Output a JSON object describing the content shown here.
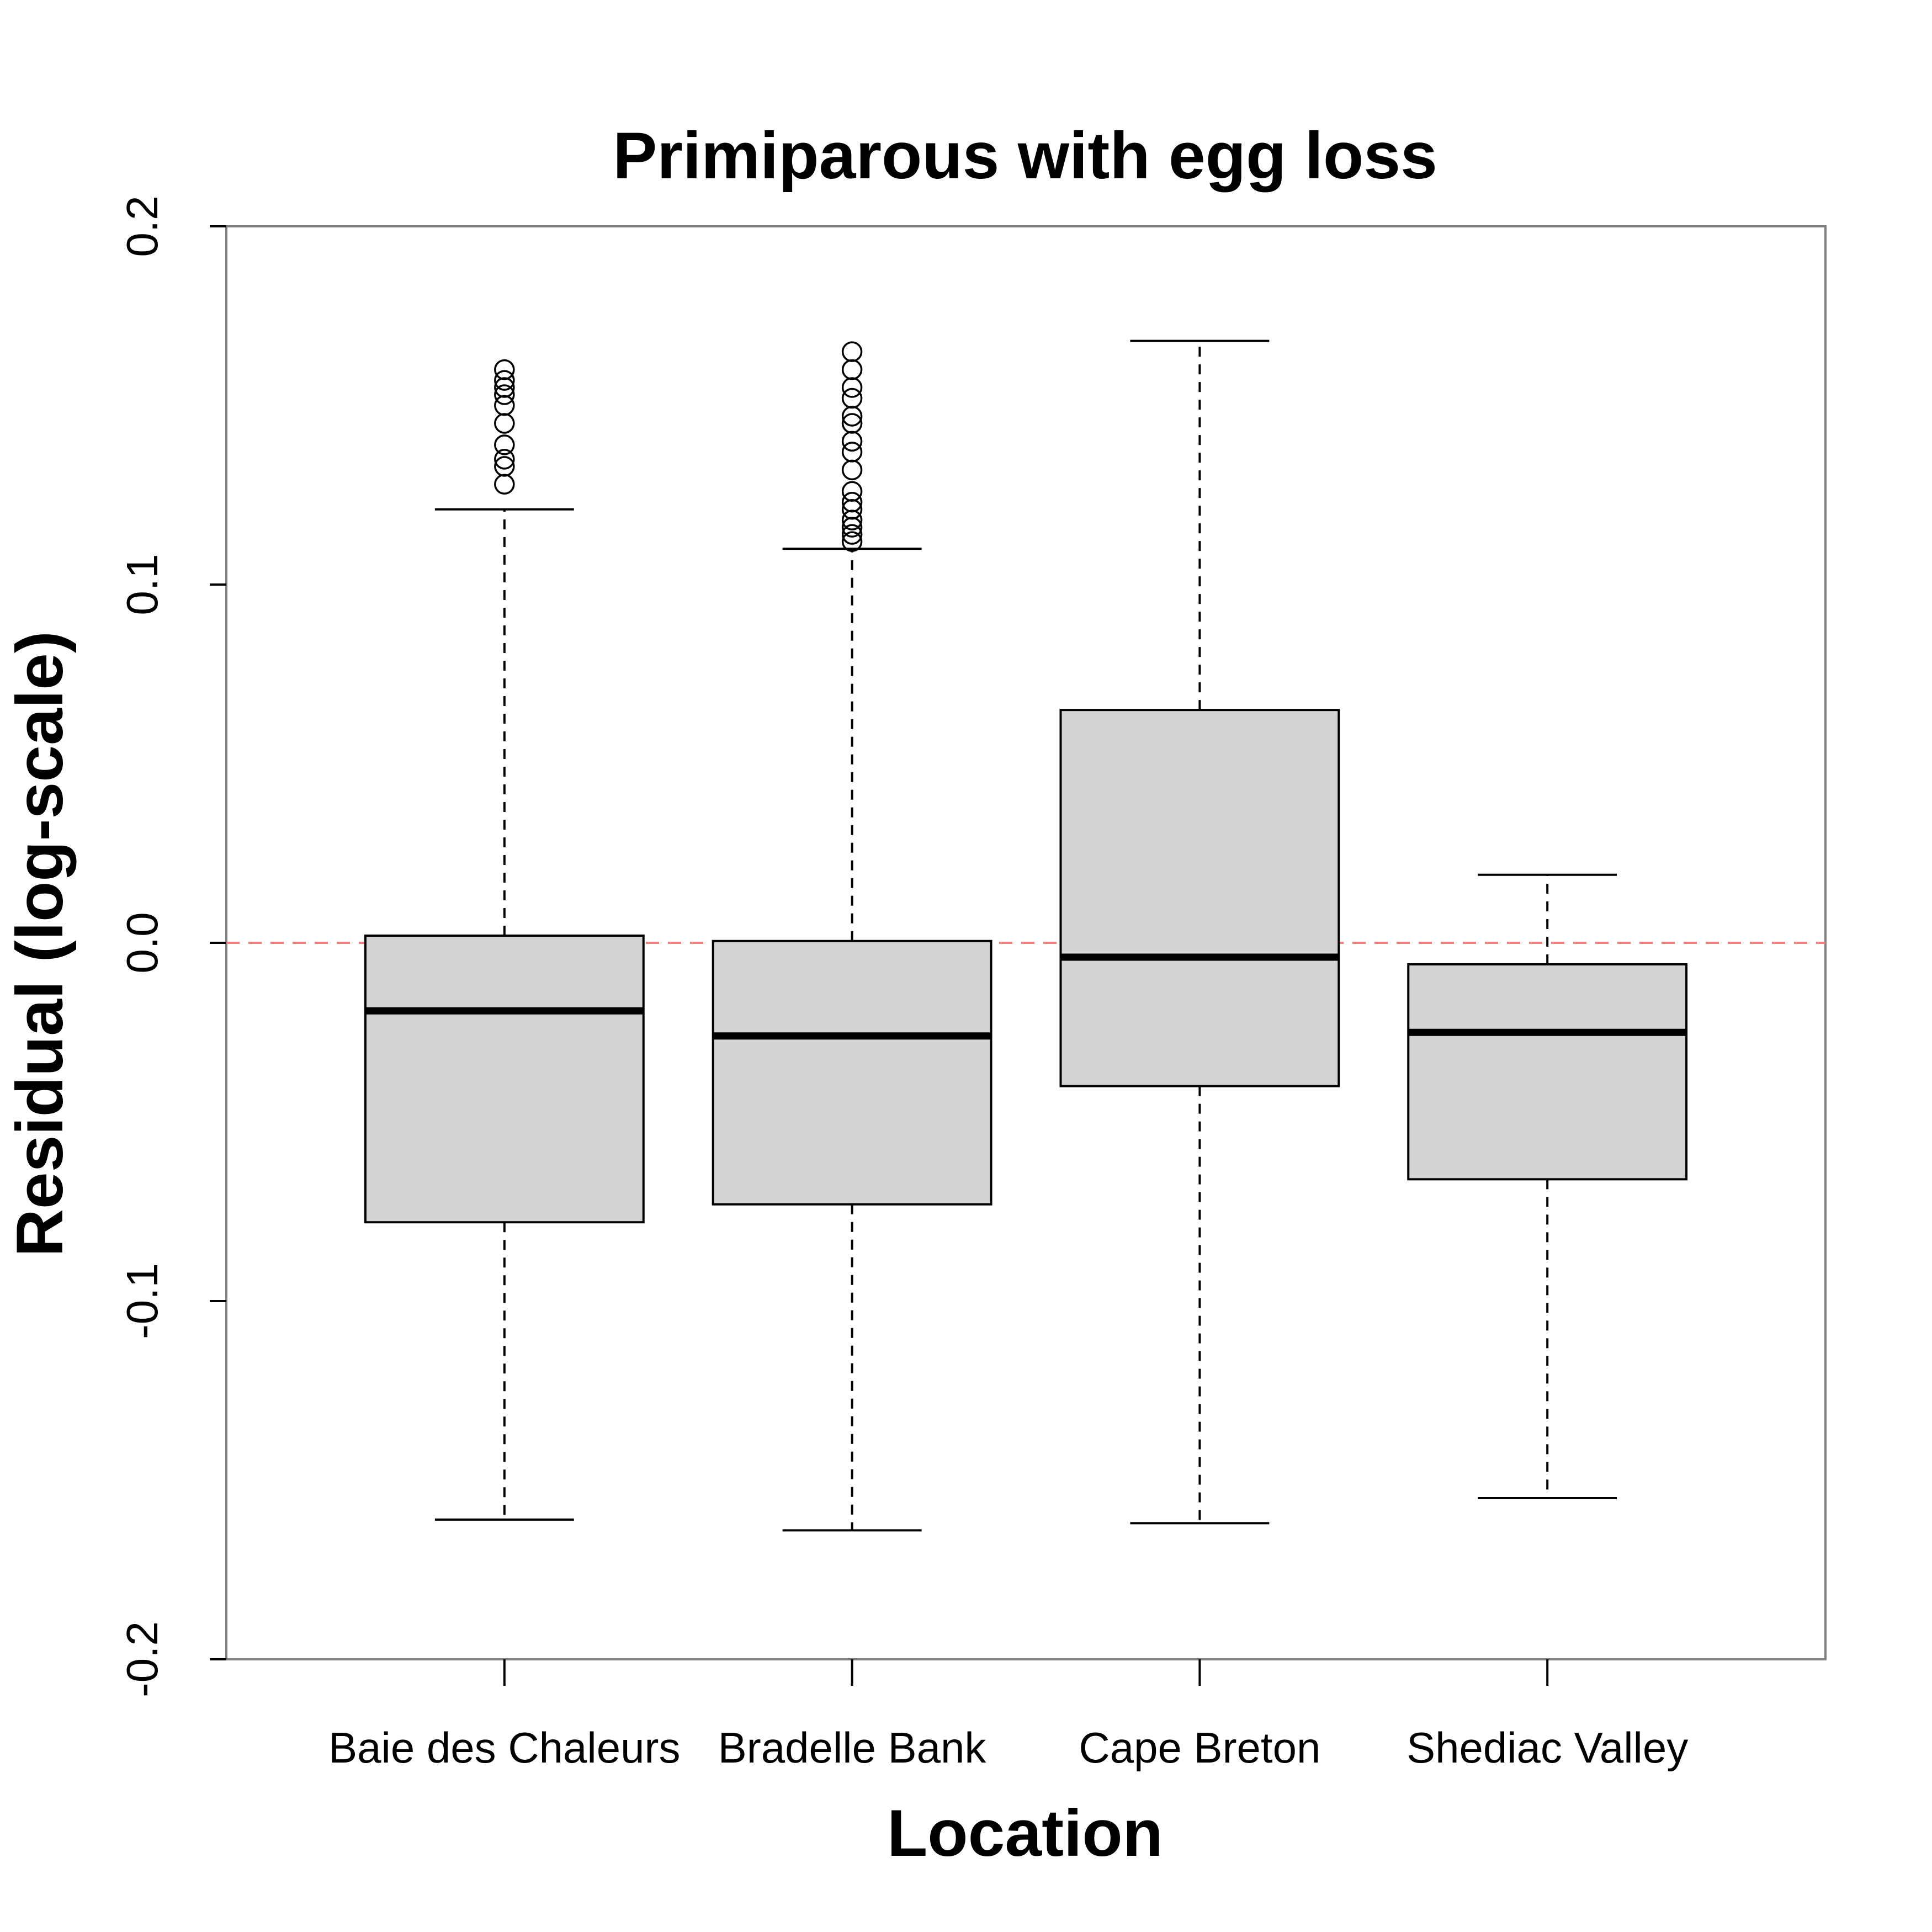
{
  "chart_data": {
    "type": "boxplot",
    "title": "Primiparous with egg loss",
    "xlabel": "Location",
    "ylabel": "Residual (log-scale)",
    "ylim": [
      -0.2,
      0.2
    ],
    "yticks": [
      -0.2,
      -0.1,
      0.0,
      0.1,
      0.2
    ],
    "ytick_labels": [
      "-0.2",
      "-0.1",
      "0.0",
      "0.1",
      "0.2"
    ],
    "reference_line": {
      "y": 0.0,
      "style": "dashed",
      "color": "#f08080"
    },
    "box_fill": "#d3d3d3",
    "categories": [
      "Baie des Chaleurs",
      "Bradelle Bank",
      "Cape Breton",
      "Shediac Valley"
    ],
    "boxes": [
      {
        "category": "Baie des Chaleurs",
        "whisker_low": -0.161,
        "q1": -0.078,
        "median": -0.019,
        "q3": 0.002,
        "whisker_high": 0.121,
        "outliers": [
          0.128,
          0.133,
          0.135,
          0.139,
          0.145,
          0.15,
          0.153,
          0.155,
          0.157,
          0.16
        ]
      },
      {
        "category": "Bradelle Bank",
        "whisker_low": -0.164,
        "q1": -0.073,
        "median": -0.026,
        "q3": 0.0005,
        "whisker_high": 0.11,
        "outliers": [
          0.112,
          0.114,
          0.116,
          0.118,
          0.121,
          0.123,
          0.126,
          0.132,
          0.137,
          0.14,
          0.145,
          0.147,
          0.152,
          0.155,
          0.16,
          0.165
        ]
      },
      {
        "category": "Cape Breton",
        "whisker_low": -0.162,
        "q1": -0.04,
        "median": -0.004,
        "q3": 0.065,
        "whisker_high": 0.168,
        "outliers": []
      },
      {
        "category": "Shediac Valley",
        "whisker_low": -0.155,
        "q1": -0.066,
        "median": -0.025,
        "q3": -0.006,
        "whisker_high": 0.019,
        "outliers": []
      }
    ]
  }
}
